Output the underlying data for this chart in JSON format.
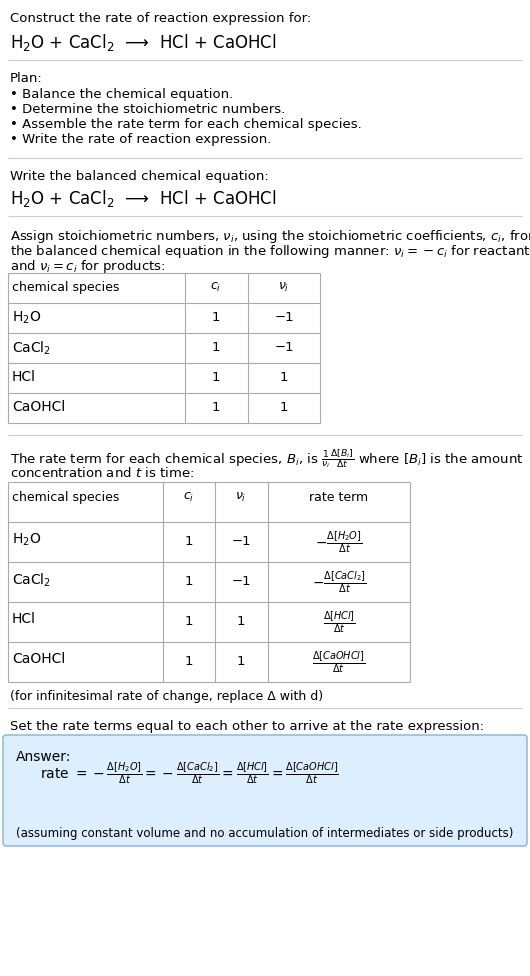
{
  "title_line1": "Construct the rate of reaction expression for:",
  "reaction_display": "H$_2$O + CaCl$_2$  ⟶  HCl + CaOHCl",
  "plan_header": "Plan:",
  "plan_items": [
    "• Balance the chemical equation.",
    "• Determine the stoichiometric numbers.",
    "• Assemble the rate term for each chemical species.",
    "• Write the rate of reaction expression."
  ],
  "balanced_header": "Write the balanced chemical equation:",
  "balanced_eq": "H$_2$O + CaCl$_2$  ⟶  HCl + CaOHCl",
  "assign_text1": "Assign stoichiometric numbers, $\\nu_i$, using the stoichiometric coefficients, $c_i$, from",
  "assign_text2": "the balanced chemical equation in the following manner: $\\nu_i = -c_i$ for reactants",
  "assign_text3": "and $\\nu_i = c_i$ for products:",
  "table1_headers": [
    "chemical species",
    "$c_i$",
    "$\\nu_i$"
  ],
  "table1_rows": [
    [
      "H$_2$O",
      "1",
      "−1"
    ],
    [
      "CaCl$_2$",
      "1",
      "−1"
    ],
    [
      "HCl",
      "1",
      "1"
    ],
    [
      "CaOHCl",
      "1",
      "1"
    ]
  ],
  "rate_text1": "The rate term for each chemical species, $B_i$, is $\\frac{1}{\\nu_i}\\frac{\\Delta[B_i]}{\\Delta t}$ where $[B_i]$ is the amount",
  "rate_text2": "concentration and $t$ is time:",
  "table2_headers": [
    "chemical species",
    "$c_i$",
    "$\\nu_i$",
    "rate term"
  ],
  "table2_rows": [
    [
      "H$_2$O",
      "1",
      "−1",
      "$-\\frac{\\Delta[H_2O]}{\\Delta t}$"
    ],
    [
      "CaCl$_2$",
      "1",
      "−1",
      "$-\\frac{\\Delta[CaCl_2]}{\\Delta t}$"
    ],
    [
      "HCl",
      "1",
      "1",
      "$\\frac{\\Delta[HCl]}{\\Delta t}$"
    ],
    [
      "CaOHCl",
      "1",
      "1",
      "$\\frac{\\Delta[CaOHCl]}{\\Delta t}$"
    ]
  ],
  "infinitesimal_note": "(for infinitesimal rate of change, replace Δ with d)",
  "set_rate_text": "Set the rate terms equal to each other to arrive at the rate expression:",
  "answer_label": "Answer:",
  "rate_expression": "rate $= -\\frac{\\Delta[H_2O]}{\\Delta t} = -\\frac{\\Delta[CaCl_2]}{\\Delta t} = \\frac{\\Delta[HCl]}{\\Delta t} = \\frac{\\Delta[CaOHCl]}{\\Delta t}$",
  "assuming_note": "(assuming constant volume and no accumulation of intermediates or side products)",
  "bg_color": "#ffffff",
  "answer_box_color": "#ddeeff",
  "text_color": "#000000",
  "table_border_color": "#aaaaaa",
  "separator_color": "#cccccc"
}
